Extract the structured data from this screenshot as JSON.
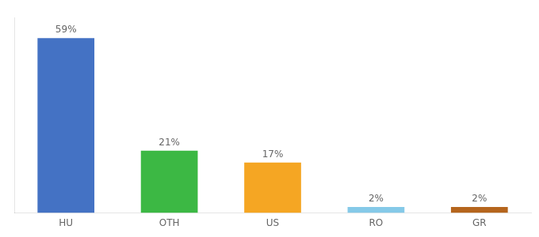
{
  "chart_data": {
    "type": "bar",
    "categories": [
      "HU",
      "OTH",
      "US",
      "RO",
      "GR"
    ],
    "values": [
      59,
      21,
      17,
      2,
      2
    ],
    "value_labels": [
      "59%",
      "21%",
      "17%",
      "2%",
      "2%"
    ],
    "colors": [
      "#4472c4",
      "#3cb844",
      "#f5a623",
      "#85c9e8",
      "#b5651d"
    ],
    "ylim": [
      0,
      66
    ],
    "grid": false,
    "data_labels": true,
    "tick_labels": "x"
  }
}
